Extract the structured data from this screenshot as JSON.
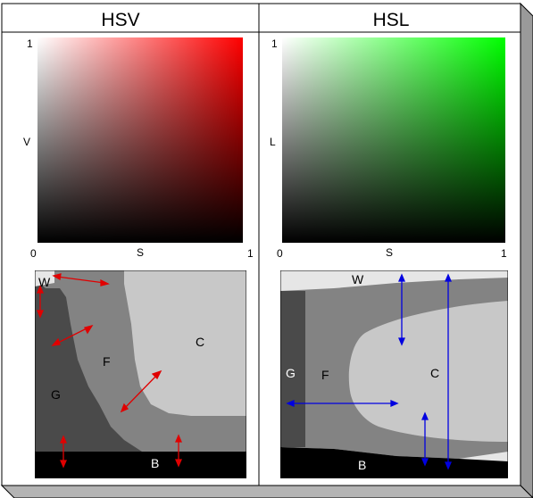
{
  "titles": {
    "left": "HSV",
    "right": "HSL"
  },
  "hsv_axes": {
    "y_top": "1",
    "y_label": "V",
    "x_min": "0",
    "x_label": "S",
    "x_max": "1"
  },
  "hsl_axes": {
    "y_top": "1",
    "y_label": "L",
    "x_min": "0",
    "x_label": "S",
    "x_max": "1"
  },
  "hsv_regions": {
    "w": "W",
    "f": "F",
    "c": "C",
    "g": "G",
    "b": "B"
  },
  "hsl_regions": {
    "w": "W",
    "g": "G",
    "f": "F",
    "c": "C",
    "b": "B"
  },
  "colors": {
    "hsv_hue": "#ff0000",
    "hsl_hue": "#00ff00",
    "hsv_arrow": "#e00000",
    "hsl_arrow": "#0000e0",
    "region_white": "#e6e6e6",
    "region_light": "#c8c8c8",
    "region_mid": "#838383",
    "region_dark": "#4a4a4a",
    "region_black": "#000000"
  }
}
